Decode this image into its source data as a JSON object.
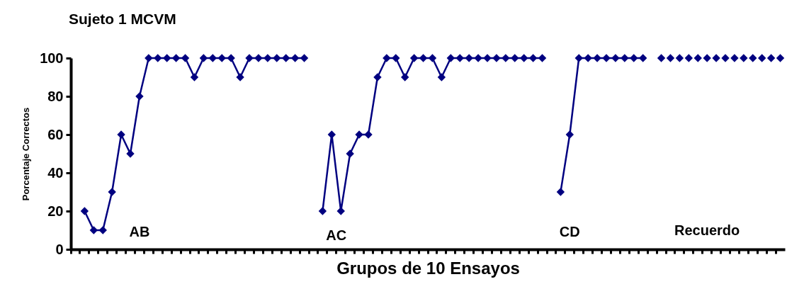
{
  "chart_data": {
    "type": "line",
    "title": "Sujeto 1  MCVM",
    "xlabel": "Grupos de 10 Ensayos",
    "ylabel": "Porcentaje Correctos",
    "categories": [
      null,
      null,
      null,
      null,
      null,
      null,
      null,
      null,
      null,
      null,
      null,
      null,
      null,
      null,
      null,
      null,
      null,
      null,
      null,
      null,
      null,
      null,
      null,
      null,
      null,
      null,
      null,
      null,
      null,
      null,
      null,
      null,
      null,
      null,
      null,
      null,
      null,
      null,
      null,
      null,
      null,
      null,
      null,
      null,
      null,
      null,
      null,
      null,
      null,
      null,
      null,
      null,
      null,
      null,
      null,
      null,
      null,
      null,
      null,
      null,
      null,
      null,
      null,
      null,
      null,
      null,
      null,
      null,
      null,
      null,
      null,
      null,
      null,
      null,
      null,
      null,
      null,
      null
    ],
    "series": [
      {
        "color": "#000080",
        "values": [
          null,
          20,
          10,
          10,
          30,
          60,
          50,
          80,
          100,
          100,
          100,
          100,
          100,
          90,
          100,
          100,
          100,
          100,
          90,
          100,
          100,
          100,
          100,
          100,
          100,
          100,
          null,
          20,
          60,
          20,
          50,
          60,
          60,
          90,
          100,
          100,
          90,
          100,
          100,
          100,
          90,
          100,
          100,
          100,
          100,
          100,
          100,
          100,
          100,
          100,
          100,
          100,
          null,
          30,
          60,
          100,
          100,
          100,
          100,
          100,
          100,
          100,
          100,
          null,
          null,
          null,
          null,
          null,
          null,
          null,
          null,
          null,
          null,
          null,
          null,
          null,
          null,
          null
        ]
      },
      {
        "type": "scatter",
        "color": "#000080",
        "values": [
          null,
          null,
          null,
          null,
          null,
          null,
          null,
          null,
          null,
          null,
          null,
          null,
          null,
          null,
          null,
          null,
          null,
          null,
          null,
          null,
          null,
          null,
          null,
          null,
          null,
          null,
          null,
          null,
          null,
          null,
          null,
          null,
          null,
          null,
          null,
          null,
          null,
          null,
          null,
          null,
          null,
          null,
          null,
          null,
          null,
          null,
          null,
          null,
          null,
          null,
          null,
          null,
          null,
          null,
          null,
          null,
          null,
          null,
          null,
          null,
          null,
          null,
          null,
          null,
          100,
          100,
          100,
          100,
          100,
          100,
          100,
          100,
          100,
          100,
          100,
          100,
          100,
          100
        ]
      }
    ],
    "annotations": [
      "AB",
      "AC",
      "CD",
      "Recuerdo"
    ],
    "ylim": [
      0,
      100
    ],
    "yticks": [
      0,
      20,
      40,
      60,
      80,
      100
    ],
    "tick_labels": "y",
    "marker": "diamond"
  }
}
